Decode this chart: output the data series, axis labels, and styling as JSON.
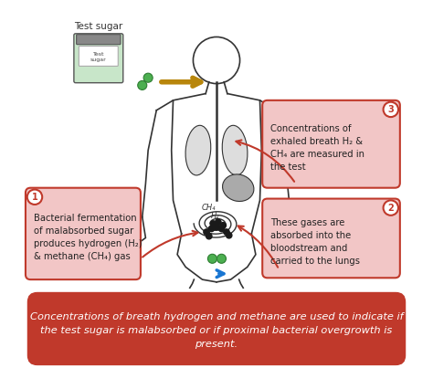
{
  "background_color": "#ffffff",
  "bottom_box_color": "#c0392b",
  "bottom_text": "Concentrations of breath hydrogen and methane are used to indicate if\nthe test sugar is malabsorbed or if proximal bacterial overgrowth is\npresent.",
  "bottom_text_color": "#ffffff",
  "callout_bg_color": "#f2c6c6",
  "callout_border_color": "#c0392b",
  "circle_color": "#ffffff",
  "circle_edge_color": "#c0392b",
  "label1_text": "Bacterial fermentation\nof malabsorbed sugar\nproduces hydrogen (H₂)\n& methane (CH₄) gas",
  "label2_text": "These gases are\nabsorbed into the\nbloodstream and\ncarried to the lungs",
  "label3_text": "Concentrations of\nexhaled breath H₂ &\nCH₄ are measured in\nthe test",
  "test_sugar_label": "Test sugar",
  "green_dot_color": "#4caf50",
  "arrow_color": "#b8860b",
  "body_color": "#333333",
  "organ_fill": "#aaaaaa",
  "lung_color": "#dddddd",
  "bacteria_color": "#1a1a1a",
  "blue_arrow_color": "#1976d2",
  "jar_body_color": "#c8e6c9",
  "jar_lid_color": "#888888"
}
